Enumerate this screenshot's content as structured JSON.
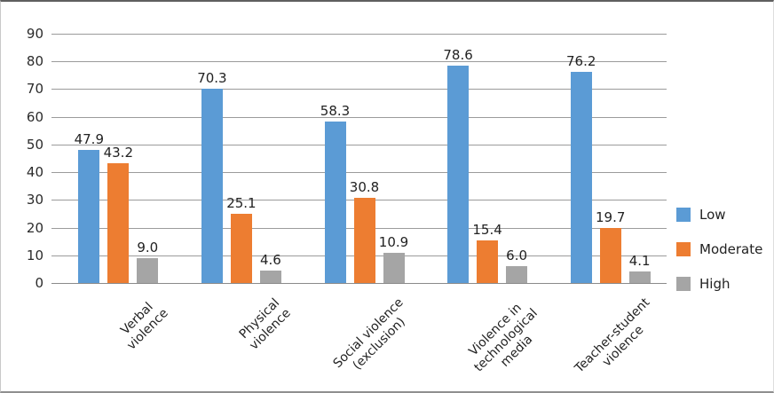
{
  "chart_data": {
    "type": "bar",
    "title": "",
    "xlabel": "",
    "ylabel": "",
    "categories": [
      "Verbal violence",
      "Physical violence",
      "Social violence (exclusion)",
      "Violence in technological media",
      "Teacher-student violence"
    ],
    "category_display_lines": [
      [
        "Verbal",
        "violence"
      ],
      [
        "Physical",
        "violence"
      ],
      [
        "Social violence",
        "(exclusion)"
      ],
      [
        "Violence in",
        "technological",
        "media"
      ],
      [
        "Teacher-student",
        "violence"
      ]
    ],
    "series": [
      {
        "name": "Low",
        "color": "#5B9BD5",
        "values": [
          47.9,
          70.3,
          58.3,
          78.6,
          76.2
        ]
      },
      {
        "name": "Moderate",
        "color": "#ED7D31",
        "values": [
          43.2,
          25.1,
          30.8,
          15.4,
          19.7
        ]
      },
      {
        "name": "High",
        "color": "#A5A5A5",
        "values": [
          9.0,
          4.6,
          10.9,
          6.0,
          4.1
        ]
      }
    ],
    "data_labels_shown": true,
    "data_label_decimals": 1,
    "ylim": [
      0,
      90
    ],
    "ytick_step": 10,
    "ytick_labels": [
      "0",
      "10",
      "20",
      "30",
      "40",
      "50",
      "60",
      "70",
      "80",
      "90"
    ],
    "grid": true,
    "gridline_color": "#9B9B9B",
    "axis_text_color": "#2B2B2B",
    "legend": {
      "position": "right",
      "entries": [
        "Low",
        "Moderate",
        "High"
      ]
    },
    "background_color": "#FFFFFF"
  }
}
